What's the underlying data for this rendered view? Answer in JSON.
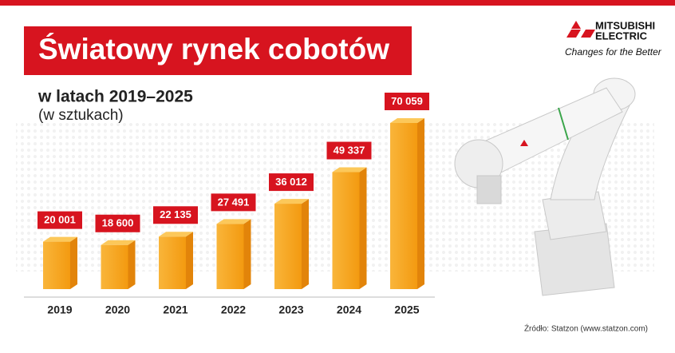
{
  "chart_data": {
    "type": "bar3d",
    "title": "Światowy rynek cobotów",
    "subtitle": "w latach 2019–2025",
    "unit_note": "(w sztukach)",
    "categories": [
      "2019",
      "2020",
      "2021",
      "2022",
      "2023",
      "2024",
      "2025"
    ],
    "values": [
      20001,
      18600,
      22135,
      27491,
      36012,
      49337,
      70059
    ],
    "value_labels": [
      "20 001",
      "18 600",
      "22 135",
      "27 491",
      "36 012",
      "49 337",
      "70 059"
    ],
    "color": "#f5a016",
    "label_color": "#d7141f",
    "source": "Źródło: Statzon (www.statzon.com)"
  },
  "logo": {
    "line1": "MITSUBISHI",
    "line2": "ELECTRIC",
    "slogan": "Changes for the Better"
  }
}
